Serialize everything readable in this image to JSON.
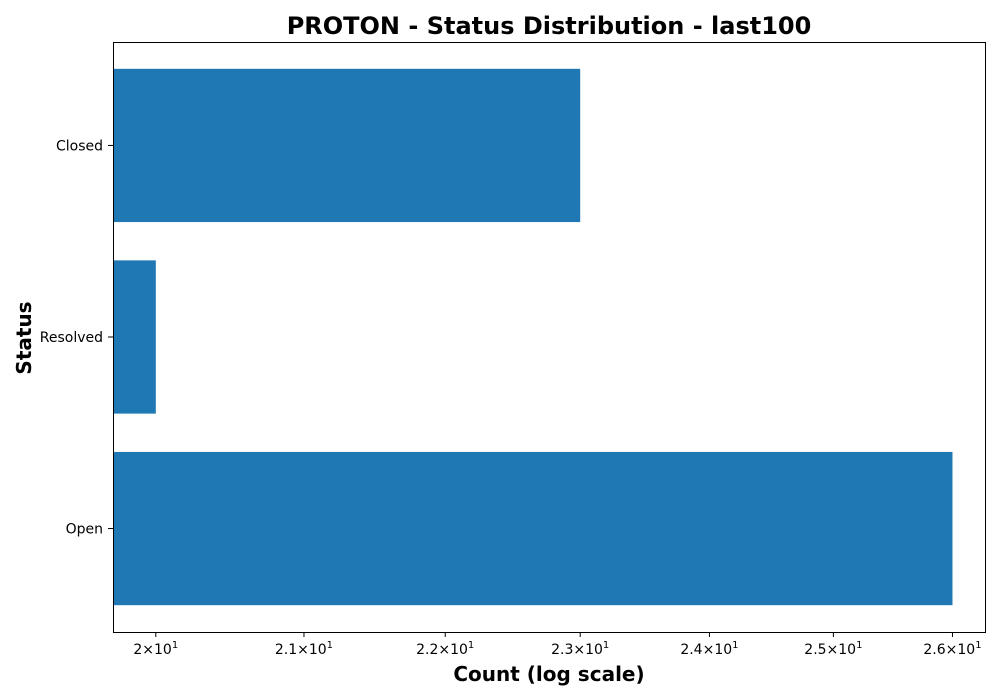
{
  "chart_data": {
    "type": "bar",
    "orientation": "horizontal",
    "title": "PROTON - Status Distribution - last100",
    "xlabel": "Count (log scale)",
    "ylabel": "Status",
    "x_scale": "log",
    "xlim": [
      19.72,
      26.28
    ],
    "categories": [
      "Closed",
      "Resolved",
      "Open"
    ],
    "values": [
      23,
      20,
      26
    ],
    "x_ticks": [
      {
        "value": 20,
        "base": "2",
        "exp": "1"
      },
      {
        "value": 21,
        "base": "2.1",
        "exp": "1"
      },
      {
        "value": 22,
        "base": "2.2",
        "exp": "1"
      },
      {
        "value": 23,
        "base": "2.3",
        "exp": "1"
      },
      {
        "value": 24,
        "base": "2.4",
        "exp": "1"
      },
      {
        "value": 25,
        "base": "2.5",
        "exp": "1"
      },
      {
        "value": 26,
        "base": "2.6",
        "exp": "1"
      }
    ],
    "bar_color": "#1f77b4",
    "grid": false,
    "legend": "none"
  }
}
